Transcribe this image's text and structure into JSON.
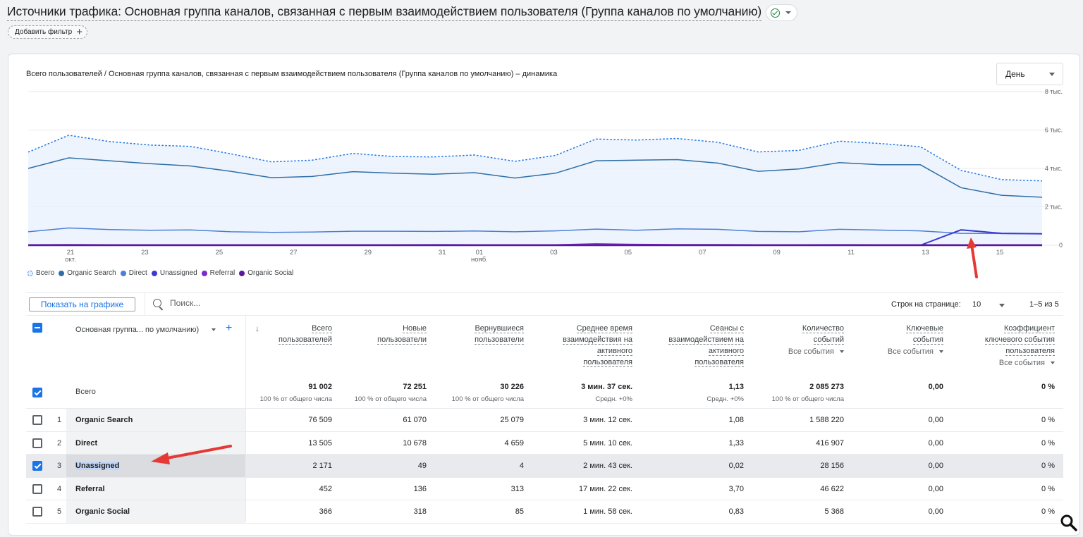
{
  "header": {
    "title": "Источники трафика: Основная группа каналов, связанная с первым взаимодействием пользователя (Группа каналов по умолчанию)",
    "add_filter": "Добавить фильтр"
  },
  "chart": {
    "title": "Всего пользователей / Основная группа каналов, связанная с первым взаимодействием пользователя (Группа каналов по умолчанию) – динамика",
    "period": "День",
    "legend": [
      "Всего",
      "Organic Search",
      "Direct",
      "Unassigned",
      "Referral",
      "Organic Social"
    ]
  },
  "chart_data": {
    "type": "line",
    "title": "Всего пользователей / Основная группа каналов, связанная с первым взаимодействием пользователя (Группа каналов по умолчанию) – динамика",
    "y_ticks": [
      "8 тыс.",
      "6 тыс.",
      "4 тыс.",
      "2 тыс.",
      "0"
    ],
    "ylim": [
      0,
      8000
    ],
    "x_ticks": [
      {
        "label": "21",
        "sub": "окт.",
        "day": 1
      },
      {
        "label": "23",
        "sub": "",
        "day": 3
      },
      {
        "label": "25",
        "sub": "",
        "day": 5
      },
      {
        "label": "27",
        "sub": "",
        "day": 7
      },
      {
        "label": "29",
        "sub": "",
        "day": 9
      },
      {
        "label": "31",
        "sub": "",
        "day": 11
      },
      {
        "label": "01",
        "sub": "нояб.",
        "day": 12
      },
      {
        "label": "03",
        "sub": "",
        "day": 14
      },
      {
        "label": "05",
        "sub": "",
        "day": 16
      },
      {
        "label": "07",
        "sub": "",
        "day": 18
      },
      {
        "label": "09",
        "sub": "",
        "day": 20
      },
      {
        "label": "11",
        "sub": "",
        "day": 22
      },
      {
        "label": "13",
        "sub": "",
        "day": 24
      },
      {
        "label": "15",
        "sub": "",
        "day": 26
      }
    ],
    "series": [
      {
        "name": "Всего",
        "color": "#1a73e8",
        "dashed": true,
        "fill": true,
        "values": [
          4850,
          5730,
          5400,
          5220,
          5150,
          4760,
          4340,
          4430,
          4780,
          4620,
          4600,
          4700,
          4370,
          4680,
          5530,
          5480,
          5560,
          5360,
          4860,
          4940,
          5420,
          5300,
          5130,
          3900,
          3420,
          3350
        ]
      },
      {
        "name": "Organic Search",
        "color": "#2f6ea5",
        "dashed": false,
        "values": [
          4000,
          4550,
          4400,
          4250,
          4130,
          3850,
          3520,
          3580,
          3830,
          3750,
          3700,
          3780,
          3500,
          3750,
          4400,
          4430,
          4460,
          4280,
          3850,
          3970,
          4300,
          4190,
          4190,
          3000,
          2600,
          2500
        ]
      },
      {
        "name": "Direct",
        "color": "#4a7fd6",
        "dashed": false,
        "values": [
          700,
          900,
          820,
          780,
          800,
          700,
          670,
          690,
          730,
          730,
          720,
          740,
          700,
          750,
          840,
          780,
          850,
          830,
          720,
          700,
          830,
          790,
          750,
          620,
          610,
          600
        ]
      },
      {
        "name": "Unassigned",
        "color": "#3b3bd1",
        "dashed": false,
        "values": [
          0,
          0,
          0,
          0,
          0,
          0,
          0,
          0,
          0,
          0,
          0,
          0,
          0,
          0,
          0,
          0,
          0,
          0,
          0,
          0,
          0,
          0,
          0,
          800,
          620,
          600
        ]
      },
      {
        "name": "Referral",
        "color": "#7b2cc8",
        "dashed": false,
        "values": [
          20,
          25,
          20,
          18,
          20,
          20,
          15,
          18,
          20,
          20,
          22,
          20,
          18,
          20,
          70,
          40,
          30,
          25,
          20,
          20,
          22,
          20,
          18,
          15,
          15,
          15
        ]
      },
      {
        "name": "Organic Social",
        "color": "#5b1a9e",
        "dashed": false,
        "values": [
          15,
          15,
          14,
          14,
          14,
          13,
          13,
          13,
          14,
          14,
          14,
          14,
          13,
          14,
          16,
          15,
          15,
          14,
          13,
          13,
          14,
          14,
          14,
          13,
          13,
          13
        ]
      }
    ]
  },
  "toolbar": {
    "plot_button": "Показать на графике",
    "search_placeholder": "Поиск...",
    "rows_label": "Строк на странице:",
    "rows_value": "10",
    "pager": "1–5 из 5"
  },
  "table": {
    "dim_header": "Основная группа... по умолчанию)",
    "sort_icon": "↓",
    "columns": [
      {
        "l1": "Всего",
        "l2": "пользователей",
        "l3": "",
        "l4": "",
        "sub": ""
      },
      {
        "l1": "Новые",
        "l2": "пользователи",
        "l3": "",
        "l4": "",
        "sub": ""
      },
      {
        "l1": "Вернувшиеся",
        "l2": "пользователи",
        "l3": "",
        "l4": "",
        "sub": ""
      },
      {
        "l1": "Среднее время",
        "l2": "взаимодействия на",
        "l3": "активного",
        "l4": "пользователя",
        "sub": ""
      },
      {
        "l1": "Сеансы с",
        "l2": "взаимодействием на",
        "l3": "активного",
        "l4": "пользователя",
        "sub": ""
      },
      {
        "l1": "Количество",
        "l2": "событий",
        "l3": "",
        "l4": "",
        "sub": "Все события"
      },
      {
        "l1": "Ключевые",
        "l2": "события",
        "l3": "",
        "l4": "",
        "sub": "Все события"
      },
      {
        "l1": "Коэффициент",
        "l2": "ключевого события",
        "l3": "пользователя",
        "l4": "",
        "sub": "Все события"
      }
    ],
    "totals": {
      "label": "Всего",
      "values": [
        "91 002",
        "72 251",
        "30 226",
        "3 мин. 37 сек.",
        "1,13",
        "2 085 273",
        "0,00",
        "0 %"
      ],
      "subs": [
        "100 % от общего числа",
        "100 % от общего числа",
        "100 % от общего числа",
        "Средн. +0%",
        "Средн. +0%",
        "100 % от общего числа",
        "",
        ""
      ]
    },
    "rows": [
      {
        "idx": "1",
        "name": "Organic Search",
        "checked": false,
        "values": [
          "76 509",
          "61 070",
          "25 079",
          "3 мин. 12 сек.",
          "1,08",
          "1 588 220",
          "0,00",
          "0 %"
        ]
      },
      {
        "idx": "2",
        "name": "Direct",
        "checked": false,
        "values": [
          "13 505",
          "10 678",
          "4 659",
          "5 мин. 10 сек.",
          "1,33",
          "416 907",
          "0,00",
          "0 %"
        ]
      },
      {
        "idx": "3",
        "name": "Unassigned",
        "checked": true,
        "values": [
          "2 171",
          "49",
          "4",
          "2 мин. 43 сек.",
          "0,02",
          "28 156",
          "0,00",
          "0 %"
        ]
      },
      {
        "idx": "4",
        "name": "Referral",
        "checked": false,
        "values": [
          "452",
          "136",
          "313",
          "17 мин. 22 сек.",
          "3,70",
          "46 622",
          "0,00",
          "0 %"
        ]
      },
      {
        "idx": "5",
        "name": "Organic Social",
        "checked": false,
        "values": [
          "366",
          "318",
          "85",
          "1 мин. 58 сек.",
          "0,83",
          "5 368",
          "0,00",
          "0 %"
        ]
      }
    ]
  },
  "colors": {
    "accent": "#1a73e8",
    "annotation": "#e53935"
  }
}
